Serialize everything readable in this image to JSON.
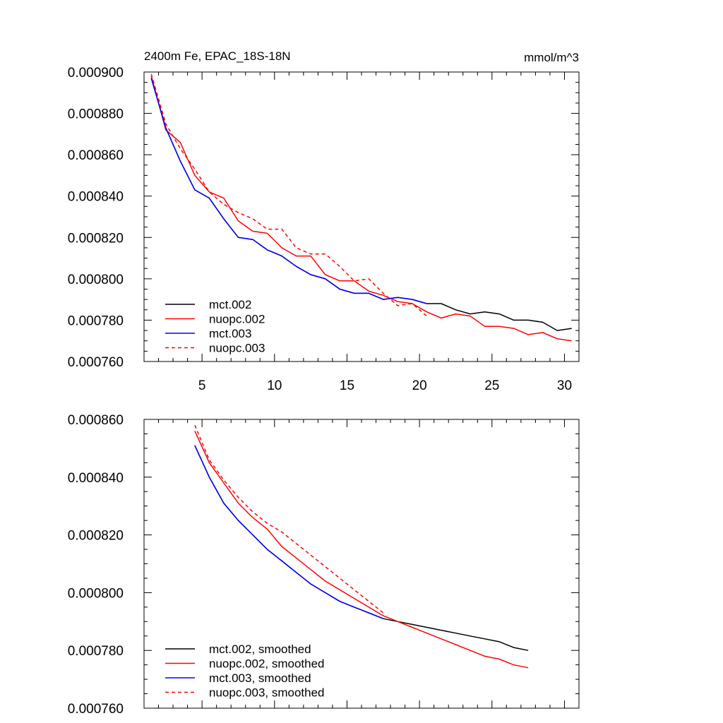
{
  "chart_data": [
    {
      "type": "line",
      "title": "2400m Fe, EPAC_18S-18N",
      "units_label": "mmol/m^3",
      "xlim": [
        1,
        31
      ],
      "ylim": [
        0.00076,
        0.0009
      ],
      "xticks": [
        5,
        10,
        15,
        20,
        25,
        30
      ],
      "xtick_labels": [
        "5",
        "10",
        "15",
        "20",
        "25",
        "30"
      ],
      "yticks": [
        0.00076,
        0.00078,
        0.0008,
        0.00082,
        0.00084,
        0.00086,
        0.00088,
        0.0009
      ],
      "ytick_labels": [
        "0.000760",
        "0.000780",
        "0.000800",
        "0.000820",
        "0.000840",
        "0.000860",
        "0.000880",
        "0.000900"
      ],
      "legend_position": "bottom-left",
      "series": [
        {
          "name": "mct.002",
          "color": "#000000",
          "dash": "solid",
          "x": [
            1.5,
            2.5,
            3.5,
            4.5,
            5.5,
            6.5,
            7.5,
            8.5,
            9.5,
            10.5,
            11.5,
            12.5,
            13.5,
            14.5,
            15.5,
            16.5,
            17.5,
            18.5,
            19.5,
            20.5,
            21.5,
            22.5,
            23.5,
            24.5,
            25.5,
            26.5,
            27.5,
            28.5,
            29.5,
            30.5
          ],
          "y": [
            0.000897,
            0.000873,
            0.000857,
            0.000843,
            0.000839,
            0.000829,
            0.00082,
            0.000819,
            0.000814,
            0.000811,
            0.000806,
            0.000802,
            0.0008,
            0.000795,
            0.000793,
            0.000793,
            0.00079,
            0.000791,
            0.00079,
            0.000788,
            0.000788,
            0.000785,
            0.000783,
            0.000784,
            0.000783,
            0.00078,
            0.00078,
            0.000779,
            0.000775,
            0.000776
          ]
        },
        {
          "name": "nuopc.002",
          "color": "#ff0000",
          "dash": "solid",
          "x": [
            1.5,
            2.5,
            3.5,
            4.5,
            5.5,
            6.5,
            7.5,
            8.5,
            9.5,
            10.5,
            11.5,
            12.5,
            13.5,
            14.5,
            15.5,
            16.5,
            17.5,
            18.5,
            19.5,
            20.5,
            21.5,
            22.5,
            23.5,
            24.5,
            25.5,
            26.5,
            27.5,
            28.5,
            29.5,
            30.5
          ],
          "y": [
            0.000898,
            0.000872,
            0.000866,
            0.00085,
            0.000842,
            0.000839,
            0.000828,
            0.000823,
            0.000822,
            0.000815,
            0.000811,
            0.000811,
            0.000802,
            0.000799,
            0.000799,
            0.000794,
            0.000792,
            0.000789,
            0.000788,
            0.000784,
            0.000781,
            0.000783,
            0.000782,
            0.000777,
            0.000777,
            0.000776,
            0.000773,
            0.000774,
            0.000771,
            0.00077
          ]
        },
        {
          "name": "mct.003",
          "color": "#0000ff",
          "dash": "solid",
          "x": [
            1.5,
            2.5,
            3.5,
            4.5,
            5.5,
            6.5,
            7.5,
            8.5,
            9.5,
            10.5,
            11.5,
            12.5,
            13.5,
            14.5,
            15.5,
            16.5,
            17.5,
            18.5,
            19.5,
            20.5
          ],
          "y": [
            0.000897,
            0.000873,
            0.000857,
            0.000843,
            0.000839,
            0.000829,
            0.00082,
            0.000819,
            0.000814,
            0.000811,
            0.000806,
            0.000802,
            0.0008,
            0.000795,
            0.000793,
            0.000793,
            0.00079,
            0.000791,
            0.00079,
            0.000788
          ]
        },
        {
          "name": "nuopc.003",
          "color": "#ff0000",
          "dash": "dashed",
          "x": [
            1.5,
            2.5,
            3.5,
            4.5,
            5.5,
            6.5,
            7.5,
            8.5,
            9.5,
            10.5,
            11.5,
            12.5,
            13.5,
            14.5,
            15.5,
            16.5,
            17.5,
            18.5,
            19.5,
            20.5
          ],
          "y": [
            0.000899,
            0.000875,
            0.000863,
            0.000853,
            0.000842,
            0.000836,
            0.000832,
            0.000829,
            0.000824,
            0.000824,
            0.000815,
            0.000812,
            0.000812,
            0.000806,
            0.000799,
            0.0008,
            0.000793,
            0.000787,
            0.000788,
            0.000782
          ]
        }
      ]
    },
    {
      "type": "line",
      "title": "",
      "xlim": [
        1,
        31
      ],
      "ylim": [
        0.00076,
        0.00086
      ],
      "xticks": [
        5,
        10,
        15,
        20,
        25,
        30
      ],
      "xtick_labels": [],
      "yticks": [
        0.00076,
        0.00078,
        0.0008,
        0.00082,
        0.00084,
        0.00086
      ],
      "ytick_labels": [
        "0.000760",
        "0.000780",
        "0.000800",
        "0.000820",
        "0.000840",
        "0.000860"
      ],
      "legend_position": "bottom-left",
      "series": [
        {
          "name": "mct.002, smoothed",
          "color": "#000000",
          "dash": "solid",
          "x": [
            4.5,
            5.5,
            6.5,
            7.5,
            8.5,
            9.5,
            10.5,
            11.5,
            12.5,
            13.5,
            14.5,
            15.5,
            16.5,
            17.5,
            18.5,
            19.5,
            20.5,
            21.5,
            22.5,
            23.5,
            24.5,
            25.5,
            26.5,
            27.5
          ],
          "y": [
            0.000851,
            0.00084,
            0.000831,
            0.000825,
            0.00082,
            0.000815,
            0.000811,
            0.000807,
            0.000803,
            0.0008,
            0.000797,
            0.000795,
            0.000793,
            0.000791,
            0.00079,
            0.000789,
            0.000788,
            0.000787,
            0.000786,
            0.000785,
            0.000784,
            0.000783,
            0.000781,
            0.00078
          ]
        },
        {
          "name": "nuopc.002, smoothed",
          "color": "#ff0000",
          "dash": "solid",
          "x": [
            4.5,
            5.5,
            6.5,
            7.5,
            8.5,
            9.5,
            10.5,
            11.5,
            12.5,
            13.5,
            14.5,
            15.5,
            16.5,
            17.5,
            18.5,
            19.5,
            20.5,
            21.5,
            22.5,
            23.5,
            24.5,
            25.5,
            26.5,
            27.5
          ],
          "y": [
            0.000856,
            0.000845,
            0.000838,
            0.000831,
            0.000826,
            0.000822,
            0.000816,
            0.000812,
            0.000808,
            0.000804,
            0.000801,
            0.000798,
            0.000795,
            0.000792,
            0.00079,
            0.000788,
            0.000786,
            0.000784,
            0.000782,
            0.00078,
            0.000778,
            0.000777,
            0.000775,
            0.000774
          ]
        },
        {
          "name": "mct.003, smoothed",
          "color": "#0000ff",
          "dash": "solid",
          "x": [
            4.5,
            5.5,
            6.5,
            7.5,
            8.5,
            9.5,
            10.5,
            11.5,
            12.5,
            13.5,
            14.5,
            15.5,
            16.5,
            17.5
          ],
          "y": [
            0.000851,
            0.00084,
            0.000831,
            0.000825,
            0.00082,
            0.000815,
            0.000811,
            0.000807,
            0.000803,
            0.0008,
            0.000797,
            0.000795,
            0.000793,
            0.000791
          ]
        },
        {
          "name": "nuopc.003, smoothed",
          "color": "#ff0000",
          "dash": "dashed",
          "x": [
            4.5,
            5.5,
            6.5,
            7.5,
            8.5,
            9.5,
            10.5,
            11.5,
            12.5,
            13.5,
            14.5,
            15.5,
            16.5,
            17.5
          ],
          "y": [
            0.000858,
            0.000846,
            0.000839,
            0.000833,
            0.000828,
            0.000824,
            0.000821,
            0.000817,
            0.000813,
            0.000809,
            0.000805,
            0.000801,
            0.000797,
            0.000793
          ]
        }
      ]
    }
  ]
}
